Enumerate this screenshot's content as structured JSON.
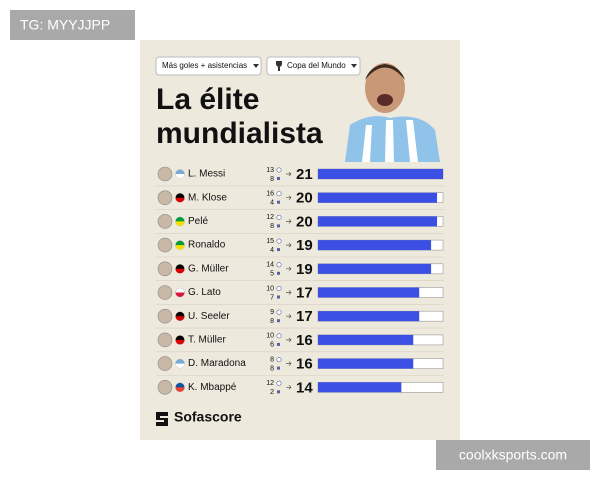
{
  "watermark": "TG: MYYJJPP",
  "site": "coolxksports.com",
  "filters": [
    "Más goles + asistencias",
    "Copa del Mundo"
  ],
  "chart_data": {
    "type": "hbar",
    "title": [
      "La élite",
      "mundialista"
    ],
    "categories": [
      "L. Messi",
      "M. Klose",
      "Pelé",
      "Ronaldo",
      "G. Müller",
      "G. Lato",
      "U. Seeler",
      "T. Müller",
      "D. Maradona",
      "K. Mbappé"
    ],
    "goals": [
      13,
      16,
      12,
      15,
      14,
      10,
      9,
      10,
      8,
      12
    ],
    "assists": [
      8,
      4,
      8,
      4,
      5,
      7,
      8,
      6,
      8,
      2
    ],
    "values": [
      21,
      20,
      20,
      19,
      19,
      17,
      17,
      16,
      16,
      14
    ],
    "xlim": [
      0,
      21
    ],
    "color": "#3b4fe4",
    "brand": "Sofascore"
  }
}
